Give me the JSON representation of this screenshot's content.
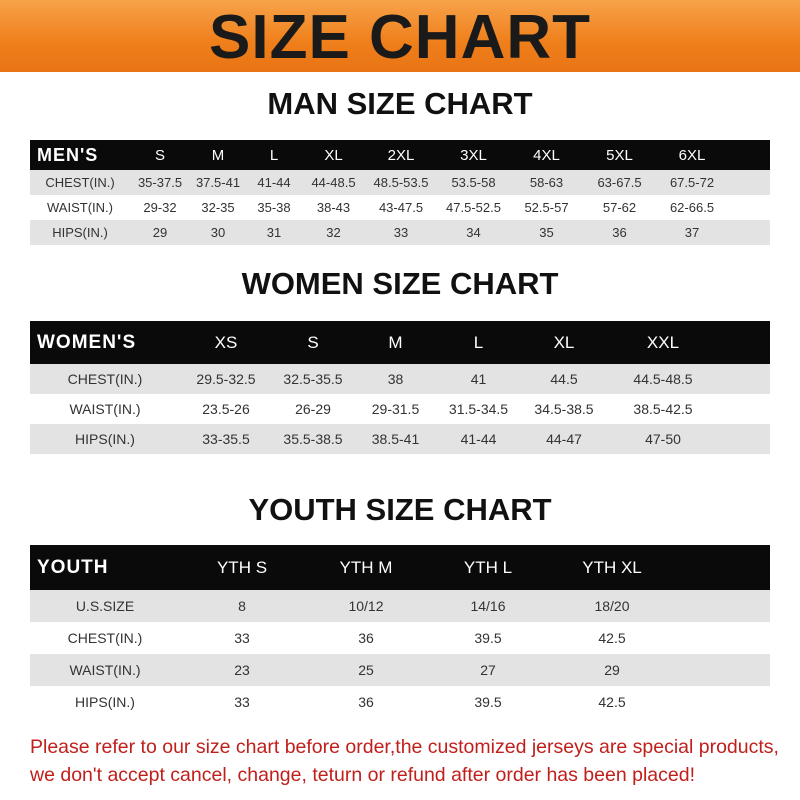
{
  "banner_title": "SIZE CHART",
  "men": {
    "title": "MAN SIZE CHART",
    "header": [
      "MEN'S",
      "S",
      "M",
      "L",
      "XL",
      "2XL",
      "3XL",
      "4XL",
      "5XL",
      "6XL",
      ""
    ],
    "rows": [
      [
        "CHEST(IN.)",
        "35-37.5",
        "37.5-41",
        "41-44",
        "44-48.5",
        "48.5-53.5",
        "53.5-58",
        "58-63",
        "63-67.5",
        "67.5-72",
        ""
      ],
      [
        "WAIST(IN.)",
        "29-32",
        "32-35",
        "35-38",
        "38-43",
        "43-47.5",
        "47.5-52.5",
        "52.5-57",
        "57-62",
        "62-66.5",
        ""
      ],
      [
        "HIPS(IN.)",
        "29",
        "30",
        "31",
        "32",
        "33",
        "34",
        "35",
        "36",
        "37",
        ""
      ]
    ]
  },
  "women": {
    "title": "WOMEN SIZE CHART",
    "header": [
      "WOMEN'S",
      "XS",
      "S",
      "M",
      "L",
      "XL",
      "XXL",
      ""
    ],
    "rows": [
      [
        "CHEST(IN.)",
        "29.5-32.5",
        "32.5-35.5",
        "38",
        "41",
        "44.5",
        "44.5-48.5",
        ""
      ],
      [
        "WAIST(IN.)",
        "23.5-26",
        "26-29",
        "29-31.5",
        "31.5-34.5",
        "34.5-38.5",
        "38.5-42.5",
        ""
      ],
      [
        "HIPS(IN.)",
        "33-35.5",
        "35.5-38.5",
        "38.5-41",
        "41-44",
        "44-47",
        "47-50",
        ""
      ]
    ]
  },
  "youth": {
    "title": "YOUTH SIZE CHART",
    "header": [
      "YOUTH",
      "YTH S",
      "YTH M",
      "YTH L",
      "YTH XL",
      ""
    ],
    "rows": [
      [
        "U.S.SIZE",
        "8",
        "10/12",
        "14/16",
        "18/20",
        ""
      ],
      [
        "CHEST(IN.)",
        "33",
        "36",
        "39.5",
        "42.5",
        ""
      ],
      [
        "WAIST(IN.)",
        "23",
        "25",
        "27",
        "29",
        ""
      ],
      [
        "HIPS(IN.)",
        "33",
        "36",
        "39.5",
        "42.5",
        ""
      ]
    ]
  },
  "notice": {
    "line1": "Please refer to our size chart before order,the customized jerseys are special products,",
    "line2": "we don't accept cancel, change, teturn or refund after order has been placed!"
  },
  "colors": {
    "banner": "#ef7f1a",
    "header_bg": "#0a0a0a",
    "row_alt": "#e3e3e3",
    "notice": "#c0201c"
  }
}
